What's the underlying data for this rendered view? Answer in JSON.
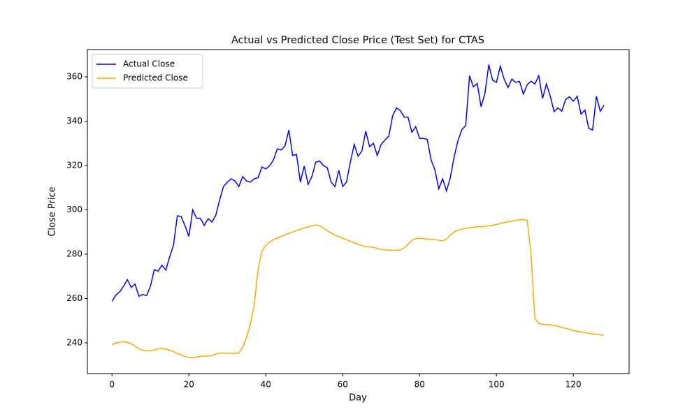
{
  "chart_data": {
    "type": "line",
    "title": "Actual vs Predicted Close Price (Test Set) for CTAS",
    "x_label": "Day",
    "y_label": "Close Price",
    "x": [
      0,
      1,
      2,
      3,
      4,
      5,
      6,
      7,
      8,
      9,
      10,
      11,
      12,
      13,
      14,
      15,
      16,
      17,
      18,
      19,
      20,
      21,
      22,
      23,
      24,
      25,
      26,
      27,
      28,
      29,
      30,
      31,
      32,
      33,
      34,
      35,
      36,
      37,
      38,
      39,
      40,
      41,
      42,
      43,
      44,
      45,
      46,
      47,
      48,
      49,
      50,
      51,
      52,
      53,
      54,
      55,
      56,
      57,
      58,
      59,
      60,
      61,
      62,
      63,
      64,
      65,
      66,
      67,
      68,
      69,
      70,
      71,
      72,
      73,
      74,
      75,
      76,
      77,
      78,
      79,
      80,
      81,
      82,
      83,
      84,
      85,
      86,
      87,
      88,
      89,
      90,
      91,
      92,
      93,
      94,
      95,
      96,
      97,
      98,
      99,
      100,
      101,
      102,
      103,
      104,
      105,
      106,
      107,
      108,
      109,
      110,
      111,
      112,
      113,
      114,
      115,
      116,
      117,
      118,
      119,
      120,
      121,
      122,
      123,
      124,
      125,
      126,
      127,
      128
    ],
    "series": [
      {
        "name": "Actual Close",
        "color": "#0000ff",
        "values": [
          258.7,
          261.5,
          263,
          265.5,
          268.5,
          265,
          266.5,
          261,
          261.8,
          261.3,
          265.5,
          273,
          272.3,
          275,
          272.8,
          278.8,
          284,
          297.3,
          297,
          292.8,
          288,
          300,
          296.2,
          296.2,
          293,
          296,
          294.5,
          297.5,
          304.5,
          310.5,
          312.5,
          314,
          313,
          310.5,
          315,
          313,
          312.5,
          314,
          314.5,
          319.3,
          318.5,
          319.8,
          322.5,
          327.5,
          327,
          328.8,
          336,
          324.5,
          325,
          312.5,
          319.8,
          311.5,
          315,
          321.5,
          322,
          320,
          319,
          312.5,
          310.5,
          317.8,
          310.5,
          312.5,
          321.5,
          329.5,
          324.2,
          326.5,
          335.5,
          328.5,
          330,
          324.5,
          329.5,
          331.5,
          333.2,
          342.5,
          346,
          344.8,
          341.8,
          341.8,
          335,
          337.5,
          332.2,
          332.2,
          331.8,
          322.5,
          318,
          309.5,
          314,
          308.5,
          314.5,
          324,
          331.2,
          336.2,
          338,
          360.5,
          355.5,
          357,
          346.5,
          352.5,
          365.5,
          358.5,
          357.5,
          364.8,
          359,
          355.2,
          359,
          357.5,
          358,
          352.2,
          356.5,
          358,
          356.8,
          360.5,
          350.2,
          356.8,
          351.2,
          344.3,
          346,
          344.5,
          349.8,
          351,
          349,
          351.2,
          343.2,
          345,
          336.8,
          336,
          351.2,
          344.5,
          347.3
        ]
      },
      {
        "name": "Predicted Close",
        "color": "#ffa500",
        "values": [
          239.2,
          239.8,
          240.3,
          240.5,
          240.2,
          239.5,
          238.5,
          237.3,
          236.6,
          236.4,
          236.5,
          236.8,
          237.3,
          237.4,
          237.2,
          236.7,
          236,
          235.2,
          234.5,
          233.8,
          233.4,
          233.3,
          233.5,
          233.9,
          234,
          234.1,
          234.3,
          234.9,
          235.3,
          235.4,
          235.3,
          235.3,
          235.2,
          235.4,
          238,
          242.5,
          248.5,
          257,
          273,
          281.5,
          284,
          285.5,
          286.5,
          287.3,
          288,
          288.7,
          289.4,
          290,
          290.6,
          291.2,
          291.8,
          292.3,
          292.8,
          293.2,
          292.8,
          291.8,
          290.6,
          289.5,
          288.6,
          287.9,
          287.2,
          286.5,
          285.8,
          285.1,
          284.5,
          283.9,
          283.4,
          283.3,
          283,
          282.6,
          282.2,
          281.9,
          281.8,
          281.7,
          281.7,
          282,
          282.8,
          284.5,
          286.2,
          287,
          287.2,
          287,
          286.8,
          286.6,
          286.5,
          286.3,
          286,
          286.8,
          288.6,
          290,
          290.8,
          291.3,
          291.6,
          291.9,
          292.1,
          292.3,
          292.4,
          292.6,
          292.8,
          293.1,
          293.4,
          293.8,
          294.2,
          294.6,
          294.9,
          295.2,
          295.5,
          295.6,
          295.2,
          280,
          251,
          248.7,
          248.3,
          248.2,
          248.1,
          247.8,
          247.5,
          247,
          246.5,
          246.1,
          245.6,
          245.2,
          244.9,
          244.6,
          244.3,
          244,
          243.8,
          243.6,
          243.4
        ]
      }
    ],
    "xlim": [
      -6.4,
      134.5
    ],
    "ylim": [
      226.1,
      372.3
    ],
    "xticks": [
      0,
      20,
      40,
      60,
      80,
      100,
      120
    ],
    "yticks": [
      240,
      260,
      280,
      300,
      320,
      340,
      360
    ],
    "grid": false,
    "legend": "upper left"
  }
}
